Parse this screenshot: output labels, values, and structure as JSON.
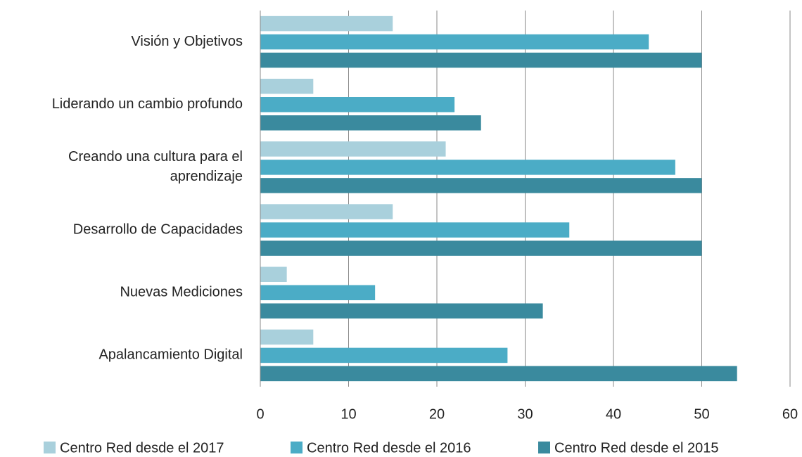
{
  "chart_data": {
    "type": "bar",
    "orientation": "horizontal",
    "categories": [
      "Visión y Objetivos",
      "Liderando un cambio profundo",
      "Creando una cultura para el aprendizaje",
      "Desarrollo de Capacidades",
      "Nuevas Mediciones",
      "Apalancamiento Digital"
    ],
    "series": [
      {
        "name": "Centro Red desde el 2017",
        "color": "#a9d0dc",
        "values": [
          15,
          6,
          21,
          15,
          3,
          6
        ]
      },
      {
        "name": "Centro Red desde el 2016",
        "color": "#4bacc6",
        "values": [
          44,
          22,
          47,
          35,
          13,
          28
        ]
      },
      {
        "name": "Centro Red desde el 2015",
        "color": "#3a8a9e",
        "values": [
          50,
          25,
          50,
          50,
          32,
          54
        ]
      }
    ],
    "xlim": [
      0,
      60
    ],
    "xticks": [
      0,
      10,
      20,
      30,
      40,
      50,
      60
    ],
    "grid": true,
    "legend": "bottom"
  }
}
